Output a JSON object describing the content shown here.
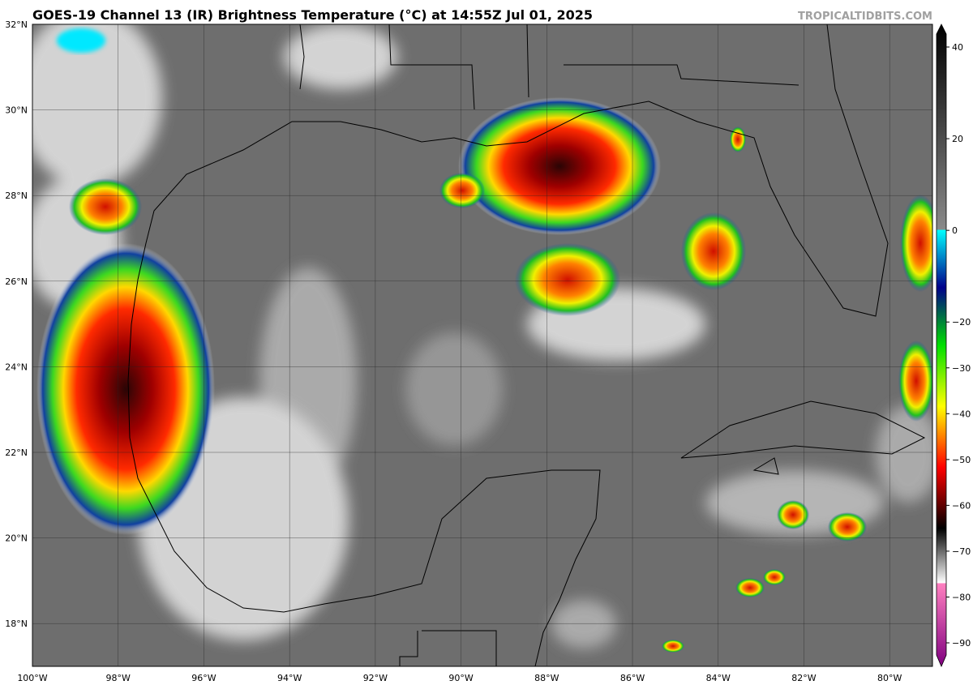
{
  "header": {
    "title": "GOES-19 Channel 13 (IR) Brightness Temperature (°C) at 14:55Z Jul 01, 2025",
    "credit": "TROPICALTIDBITS.COM"
  },
  "map": {
    "lat_labels": [
      {
        "value": 32,
        "label": "32°N"
      },
      {
        "value": 30,
        "label": "30°N"
      },
      {
        "value": 28,
        "label": "28°N"
      },
      {
        "value": 26,
        "label": "26°N"
      },
      {
        "value": 24,
        "label": "24°N"
      },
      {
        "value": 22,
        "label": "22°N"
      },
      {
        "value": 20,
        "label": "20°N"
      },
      {
        "value": 18,
        "label": "18°N"
      }
    ],
    "lon_labels": [
      {
        "value": -100,
        "label": "100°W"
      },
      {
        "value": -98,
        "label": "98°W"
      },
      {
        "value": -96,
        "label": "96°W"
      },
      {
        "value": -94,
        "label": "94°W"
      },
      {
        "value": -92,
        "label": "92°W"
      },
      {
        "value": -90,
        "label": "90°W"
      },
      {
        "value": -88,
        "label": "88°W"
      },
      {
        "value": -86,
        "label": "86°W"
      },
      {
        "value": -84,
        "label": "84°W"
      },
      {
        "value": -82,
        "label": "82°W"
      },
      {
        "value": -80,
        "label": "80°W"
      }
    ]
  },
  "colorbar": {
    "ticks": [
      40,
      20,
      0,
      {
        "value": -20,
        "label": "−20"
      },
      {
        "value": -30,
        "label": "−30"
      },
      {
        "value": -40,
        "label": "−40"
      },
      {
        "value": -50,
        "label": "−50"
      },
      {
        "value": -60,
        "label": "−60"
      },
      {
        "value": -70,
        "label": "−70"
      },
      {
        "value": -80,
        "label": "−80"
      },
      {
        "value": -90,
        "label": "−90"
      }
    ]
  }
}
